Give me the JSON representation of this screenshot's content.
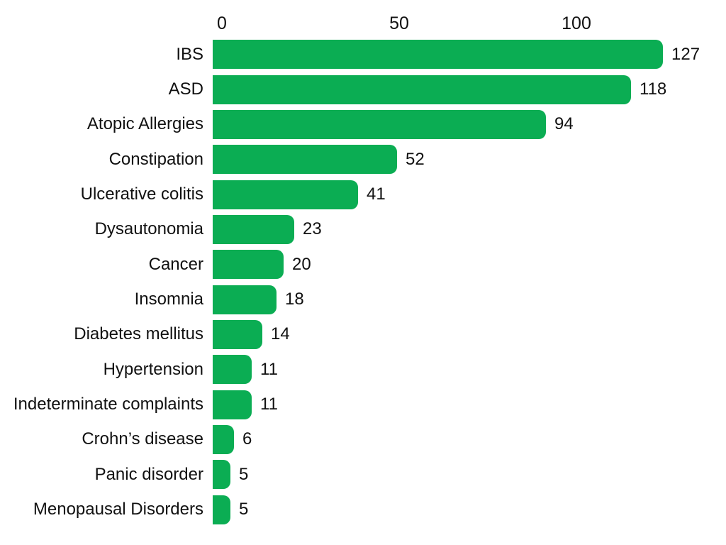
{
  "chart_data": {
    "type": "bar",
    "orientation": "horizontal",
    "title": "",
    "xlabel": "",
    "ylabel": "",
    "grid": false,
    "axis_position": "top",
    "data_labels": true,
    "bar_color": "#0bad53",
    "text_color": "#111111",
    "x_ticks": [
      0,
      50,
      100
    ],
    "xlim": [
      0,
      142
    ],
    "categories": [
      "IBS",
      "ASD",
      "Atopic Allergies",
      "Constipation",
      "Ulcerative colitis",
      "Dysautonomia",
      "Cancer",
      "Insomnia",
      "Diabetes mellitus",
      "Hypertension",
      "Indeterminate complaints",
      "Crohn’s disease",
      "Panic disorder",
      "Menopausal Disorders"
    ],
    "values": [
      127,
      118,
      94,
      52,
      41,
      23,
      20,
      18,
      14,
      11,
      11,
      6,
      5,
      5
    ]
  }
}
